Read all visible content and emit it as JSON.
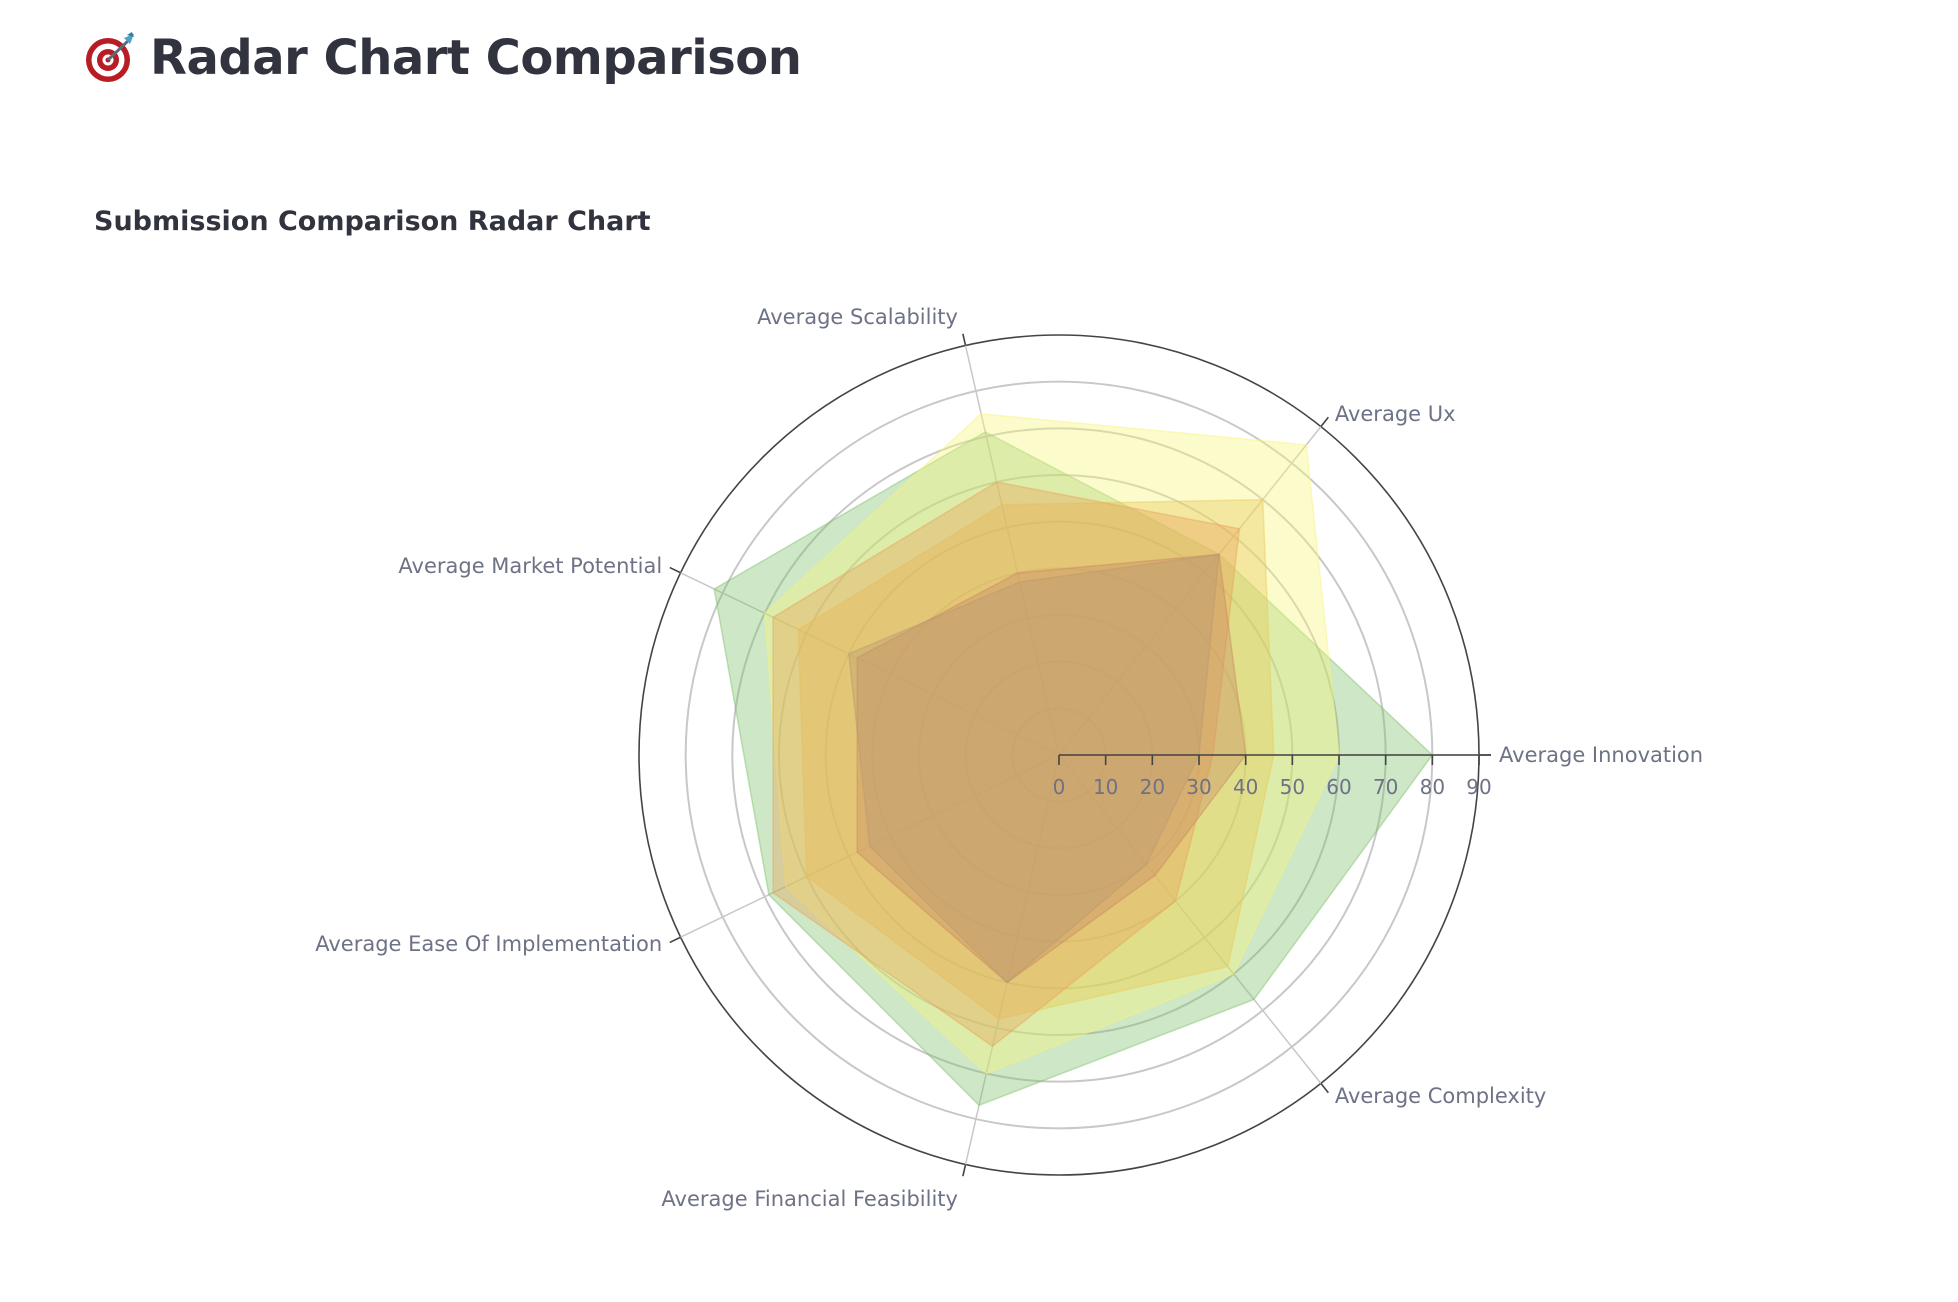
{
  "page": {
    "title": "Radar Chart Comparison",
    "icon": "target-icon"
  },
  "chart_data": {
    "type": "radar",
    "title": "Submission Comparison Radar Chart",
    "axes": [
      "Average Innovation",
      "Average Ux",
      "Average Scalability",
      "Average Market Potential",
      "Average Ease Of Implementation",
      "Average Financial Feasibility",
      "Average Complexity"
    ],
    "radial_range": [
      0,
      90
    ],
    "radial_ticks": [
      0,
      10,
      20,
      30,
      40,
      50,
      60,
      70,
      80,
      90
    ],
    "grid": true,
    "legend": "none",
    "series": [
      {
        "values": [
          80,
          55,
          71,
          82,
          69,
          77,
          67
        ],
        "color": "#7fbf6a"
      },
      {
        "values": [
          60,
          85,
          75,
          70,
          65,
          70,
          60
        ],
        "color": "#f7f57a"
      },
      {
        "values": [
          46,
          70,
          55,
          62,
          60,
          58,
          58
        ],
        "color": "#e8c95a"
      },
      {
        "values": [
          33,
          62,
          60,
          68,
          68,
          64,
          40
        ],
        "color": "#e8a25a"
      },
      {
        "values": [
          40,
          55,
          40,
          48,
          48,
          50,
          33
        ],
        "color": "#c98a60"
      },
      {
        "values": [
          30,
          55,
          38,
          50,
          45,
          50,
          30
        ],
        "color": "#b89a70"
      }
    ]
  }
}
